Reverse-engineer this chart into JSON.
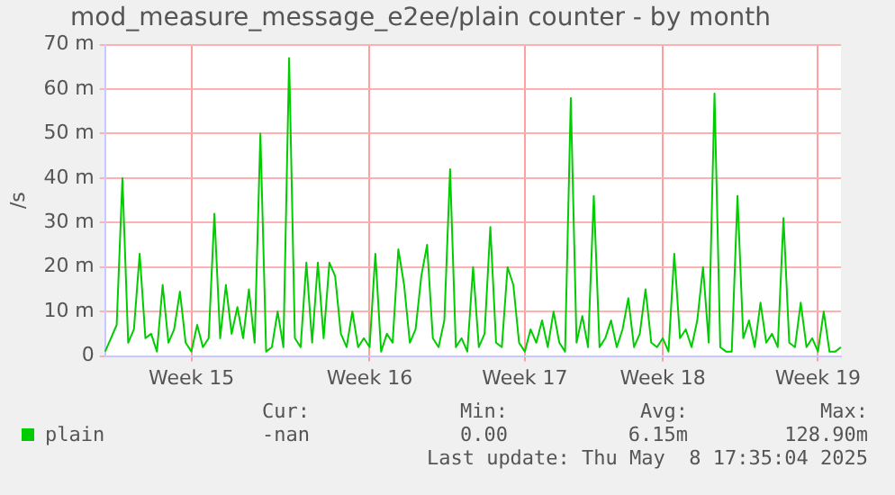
{
  "chart_data": {
    "type": "line",
    "title": "mod_measure_message_e2ee/plain counter - by month",
    "ylabel": "/s",
    "categories": [
      null,
      null,
      null,
      null,
      null,
      null,
      null,
      null,
      null,
      null,
      null,
      null,
      null,
      null,
      null,
      "Week 15",
      null,
      null,
      null,
      null,
      null,
      null,
      null,
      null,
      null,
      null,
      null,
      null,
      null,
      null,
      null,
      null,
      null,
      null,
      null,
      null,
      null,
      null,
      null,
      null,
      null,
      null,
      null,
      null,
      null,
      null,
      "Week 16",
      null,
      null,
      null,
      null,
      null,
      null,
      null,
      null,
      null,
      null,
      null,
      null,
      null,
      null,
      null,
      null,
      null,
      null,
      null,
      null,
      null,
      null,
      null,
      null,
      null,
      null,
      "Week 17",
      null,
      null,
      null,
      null,
      null,
      null,
      null,
      null,
      null,
      null,
      null,
      null,
      null,
      null,
      null,
      null,
      null,
      null,
      null,
      null,
      null,
      null,
      null,
      "Week 18",
      null,
      null,
      null,
      null,
      null,
      null,
      null,
      null,
      null,
      null,
      null,
      null,
      null,
      null,
      null,
      null,
      null,
      null,
      null,
      null,
      null,
      null,
      null,
      null,
      null,
      null,
      "Week 19",
      null,
      null,
      null,
      null
    ],
    "series": [
      {
        "name": "plain",
        "color": "#00cc00",
        "values": [
          1,
          4,
          7,
          40,
          3,
          6,
          23,
          4,
          5,
          1,
          16,
          3,
          6,
          14.5,
          3,
          1,
          7,
          2,
          4,
          32,
          4,
          16,
          5,
          11,
          4,
          15,
          3,
          50,
          1,
          2,
          10,
          2,
          67,
          4,
          2,
          21,
          3,
          21,
          4,
          21,
          18,
          5,
          2,
          10,
          2,
          4,
          2,
          23,
          1,
          5,
          3,
          24,
          16,
          3,
          6,
          18,
          25,
          4,
          2,
          8,
          42,
          2,
          4,
          1,
          20,
          2,
          5,
          29,
          3,
          2,
          20,
          16,
          3,
          1,
          6,
          3,
          8,
          2,
          10,
          3,
          1,
          58,
          3,
          9,
          2,
          36,
          2,
          4,
          8,
          2,
          6,
          13,
          2,
          5,
          15,
          3,
          2,
          4,
          1,
          23,
          4,
          6,
          2,
          8,
          20,
          3,
          59,
          2,
          1,
          1,
          36,
          4,
          8,
          2,
          12,
          3,
          5,
          2,
          31,
          3,
          2,
          12,
          2,
          4,
          1,
          10,
          1,
          1,
          2
        ]
      }
    ],
    "ylim": [
      0,
      70
    ],
    "yticks": [
      0,
      {
        "value": 10,
        "label": "10 m"
      },
      {
        "value": 20,
        "label": "20 m"
      },
      {
        "value": 30,
        "label": "30 m"
      },
      {
        "value": 40,
        "label": "40 m"
      },
      {
        "value": 50,
        "label": "50 m"
      },
      {
        "value": 60,
        "label": "60 m"
      },
      {
        "value": 70,
        "label": "70 m"
      }
    ],
    "grid": true,
    "legend": "bottom",
    "marker": "none",
    "line_style": "solid",
    "annotations": [
      "Cur:",
      "Min:",
      "Avg:",
      "Max:",
      "-nan",
      "0.00",
      "6.15m",
      "128.90m",
      "Last update: Thu May  8 17:35:04 2025"
    ]
  }
}
